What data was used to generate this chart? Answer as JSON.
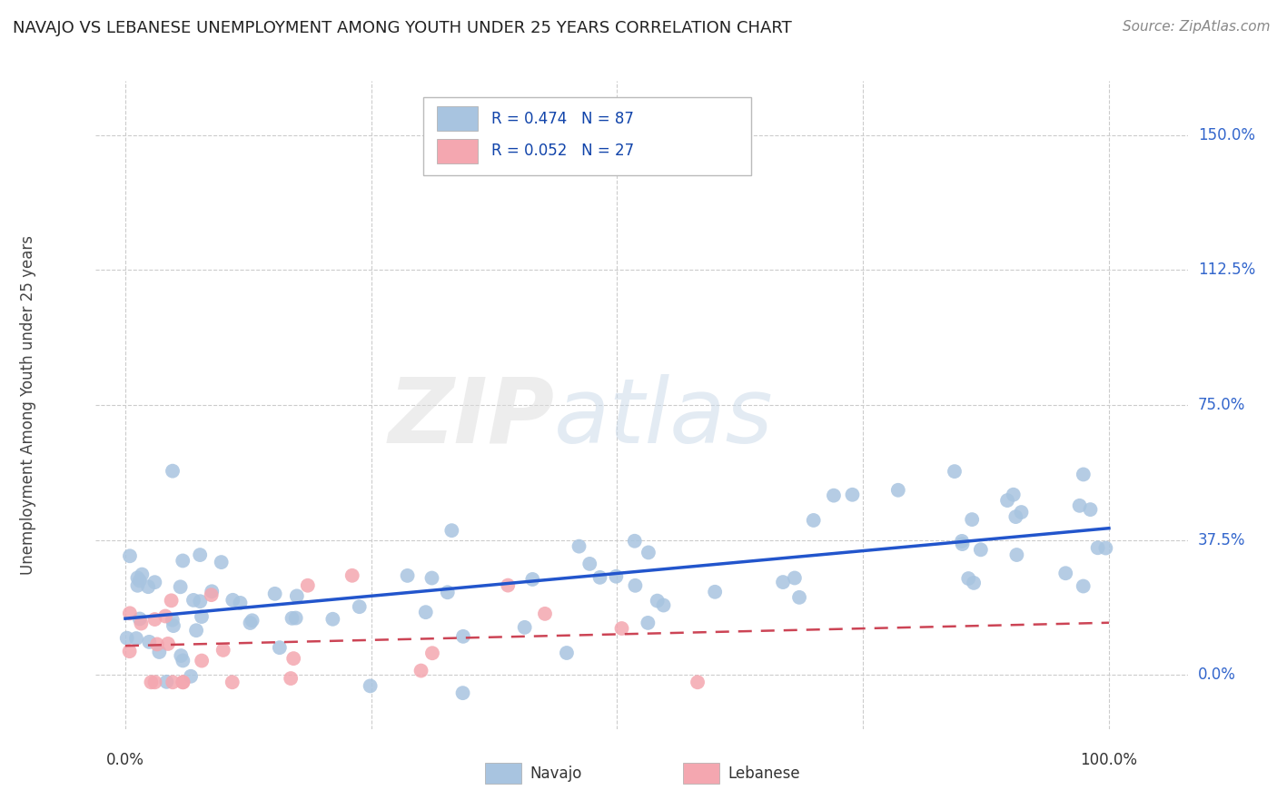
{
  "title": "NAVAJO VS LEBANESE UNEMPLOYMENT AMONG YOUTH UNDER 25 YEARS CORRELATION CHART",
  "source": "Source: ZipAtlas.com",
  "ylabel": "Unemployment Among Youth under 25 years",
  "ytick_labels": [
    "0.0%",
    "37.5%",
    "75.0%",
    "112.5%",
    "150.0%"
  ],
  "ytick_values": [
    0.0,
    0.375,
    0.75,
    1.125,
    1.5
  ],
  "xtick_labels": [
    "0.0%",
    "100.0%"
  ],
  "xtick_values": [
    0.0,
    1.0
  ],
  "navajo_color": "#a8c4e0",
  "lebanese_color": "#f4a7b0",
  "navajo_line_color": "#2255cc",
  "lebanese_line_color": "#cc4455",
  "navajo_R": 0.474,
  "navajo_N": 87,
  "lebanese_R": 0.052,
  "lebanese_N": 27,
  "legend_labels": [
    "Navajo",
    "Lebanese"
  ],
  "legend_R_color": "#1144aa",
  "watermark_zip": "ZIP",
  "watermark_atlas": "atlas",
  "background_color": "#ffffff",
  "grid_color": "#cccccc",
  "title_color": "#222222",
  "source_color": "#888888",
  "ylabel_color": "#444444",
  "ytick_color": "#3366cc"
}
